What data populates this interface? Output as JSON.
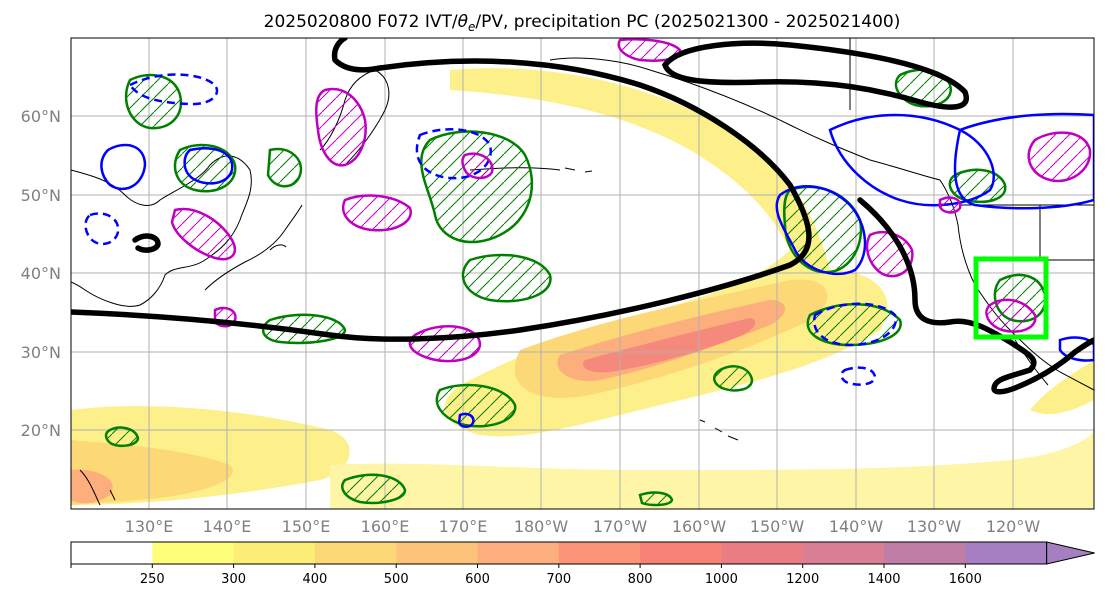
{
  "title": "2025020800 F072 IVT/θe/PV, precipitation PC (2025021300 - 2025021400)",
  "title_parts": {
    "prefix": "2025020800 F072 IVT/",
    "theta": "θ",
    "sub": "e",
    "suffix": "/PV, precipitation PC (2025021300 - 2025021400)"
  },
  "map": {
    "lon_labels": [
      "130°E",
      "140°E",
      "150°E",
      "160°E",
      "170°E",
      "180°W",
      "170°W",
      "160°W",
      "150°W",
      "140°W",
      "130°W",
      "120°W"
    ],
    "lat_labels": [
      "60°N",
      "50°N",
      "40°N",
      "30°N",
      "20°N"
    ],
    "lon_range": [
      120,
      250
    ],
    "lat_range": [
      10,
      70
    ]
  },
  "colorbar": {
    "ticks": [
      "250",
      "300",
      "400",
      "500",
      "600",
      "700",
      "800",
      "1000",
      "1200",
      "1400",
      "1600"
    ],
    "colors": [
      "#ffffff",
      "#fefe7a",
      "#fdee78",
      "#fcd877",
      "#fdc37b",
      "#fcae7c",
      "#fc9479",
      "#f88277",
      "#ea7c83",
      "#d97e94",
      "#c07ea6",
      "#a67fc3"
    ]
  },
  "colors": {
    "ivt_fill_light": "#fdf08a",
    "ivt_fill_mid": "#fcc27a",
    "ivt_fill_high": "#f58a7c",
    "theta_contour": "#000000",
    "precip_positive": "#008000",
    "precip_negative": "#0000ff",
    "pv_contour": "#c000c0",
    "target_box": "#00ff00"
  }
}
